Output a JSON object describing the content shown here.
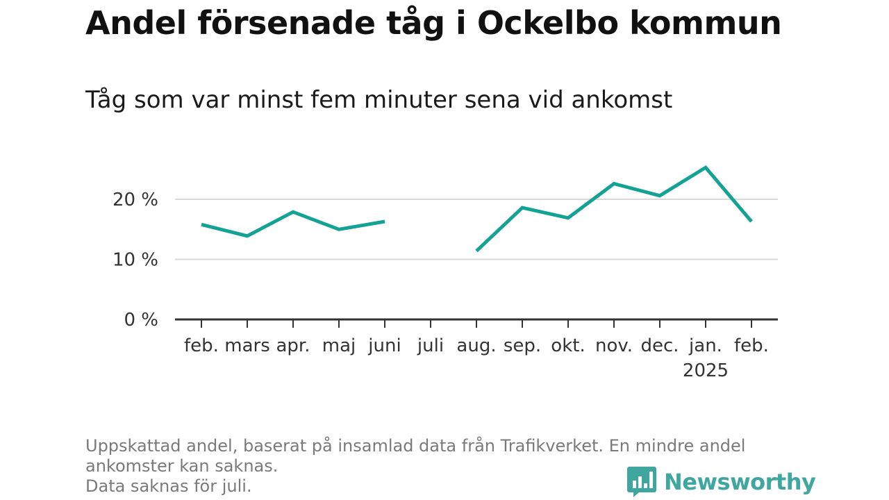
{
  "title": "Andel försenade tåg i Ockelbo kommun",
  "subtitle": "Tåg som var minst fem minuter sena vid ankomst",
  "notes": [
    "Uppskattad andel, baserat på insamlad data från Trafikverket. En mindre andel",
    "ankomster kan saknas.",
    "Data saknas för juli."
  ],
  "brand": {
    "name": "Newsworthy",
    "icon": "bar-chart-speech-bubble-icon"
  },
  "colors": {
    "line": "#14a294",
    "grid": "#d9d9d9",
    "axis": "#333333",
    "brand": "#3fa6a0"
  },
  "chart_data": {
    "type": "line",
    "categories": [
      "feb.",
      "mars",
      "apr.",
      "maj",
      "juni",
      "juli",
      "aug.",
      "sep.",
      "okt.",
      "nov.",
      "dec.",
      "jan.",
      "feb."
    ],
    "category_sublabels": [
      "",
      "",
      "",
      "",
      "",
      "",
      "",
      "",
      "",
      "",
      "",
      "2025",
      ""
    ],
    "values": [
      15.8,
      13.9,
      17.9,
      15.0,
      16.3,
      null,
      11.4,
      18.6,
      16.9,
      22.6,
      20.6,
      25.3,
      16.3
    ],
    "yticks": [
      0,
      10,
      20
    ],
    "ytick_labels": [
      "0 %",
      "10 %",
      "20 %"
    ],
    "ylim": [
      0,
      27
    ],
    "grid": true,
    "legend": "none",
    "xlabel": "",
    "ylabel": ""
  }
}
